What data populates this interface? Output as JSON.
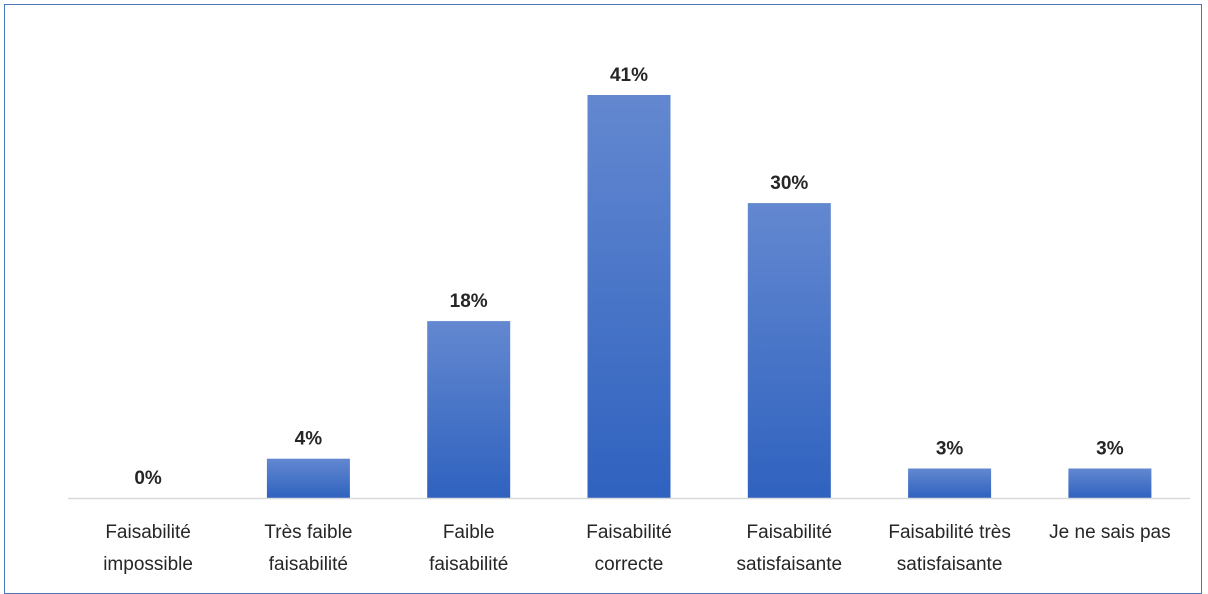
{
  "chart_data": {
    "type": "bar",
    "categories": [
      [
        "Faisabilité",
        "impossible"
      ],
      [
        "Très faible",
        "faisabilité"
      ],
      [
        "Faible",
        "faisabilité"
      ],
      [
        "Faisabilité",
        "correcte"
      ],
      [
        "Faisabilité",
        "satisfaisante"
      ],
      [
        "Faisabilité très",
        "satisfaisante"
      ],
      [
        "Je ne sais pas"
      ]
    ],
    "values": [
      0,
      4,
      18,
      41,
      30,
      3,
      3
    ],
    "value_labels": [
      "0%",
      "4%",
      "18%",
      "41%",
      "30%",
      "3%",
      "3%"
    ],
    "unit": "%",
    "ylim": [
      0,
      41
    ],
    "grid": false,
    "legend": "none",
    "colors": {
      "bar_top": "#6388d0",
      "bar_bottom": "#2f62bf",
      "axis": "#d9d9d9",
      "frame": "#4a74b5",
      "text": "#262626"
    }
  }
}
